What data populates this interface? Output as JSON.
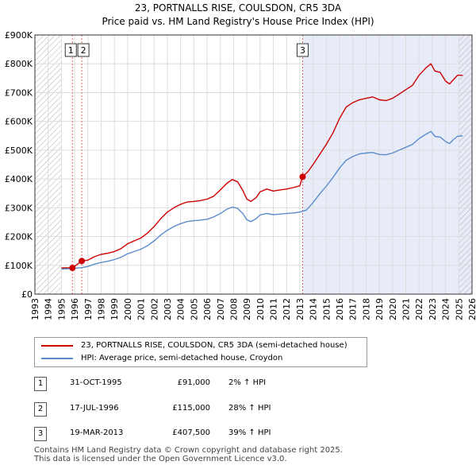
{
  "title_line1": "23, PORTNALLS RISE, COULSDON, CR5 3DA",
  "title_line2": "Price paid vs. HM Land Registry's House Price Index (HPI)",
  "colors": {
    "property": "#cc0000",
    "hpi": "#5b8ccc",
    "shade": "#e8ecf8",
    "hatch": "#aaaaaa",
    "marker_line": "#e06666"
  },
  "chart_data": {
    "type": "line",
    "x_range": [
      1993.0,
      2026.0
    ],
    "y_range": [
      0,
      900000
    ],
    "y_ticks": [
      {
        "v": 0,
        "label": "£0"
      },
      {
        "v": 100000,
        "label": "£100K"
      },
      {
        "v": 200000,
        "label": "£200K"
      },
      {
        "v": 300000,
        "label": "£300K"
      },
      {
        "v": 400000,
        "label": "£400K"
      },
      {
        "v": 500000,
        "label": "£500K"
      },
      {
        "v": 600000,
        "label": "£600K"
      },
      {
        "v": 700000,
        "label": "£700K"
      },
      {
        "v": 800000,
        "label": "£800K"
      },
      {
        "v": 900000,
        "label": "£900K"
      }
    ],
    "x_ticks": [
      "1993",
      "1994",
      "1995",
      "1996",
      "1997",
      "1998",
      "1999",
      "2000",
      "2001",
      "2002",
      "2003",
      "2004",
      "2005",
      "2006",
      "2007",
      "2008",
      "2009",
      "2010",
      "2011",
      "2012",
      "2013",
      "2014",
      "2015",
      "2016",
      "2017",
      "2018",
      "2019",
      "2020",
      "2021",
      "2022",
      "2023",
      "2024",
      "2025",
      "2026"
    ],
    "grid": true,
    "hatched_before": 1995.0,
    "hatched_after": 2025.0,
    "shaded_from": 2013.2,
    "series": [
      {
        "name": "23, PORTNALLS RISE, COULSDON, CR5 3DA (semi-detached house)",
        "key": "property",
        "points": [
          [
            1995.0,
            91000
          ],
          [
            1995.83,
            91000
          ],
          [
            1996.54,
            115000
          ],
          [
            1997.0,
            118000
          ],
          [
            1997.5,
            130000
          ],
          [
            1998.0,
            138000
          ],
          [
            1998.5,
            142000
          ],
          [
            1999.0,
            148000
          ],
          [
            1999.5,
            158000
          ],
          [
            2000.0,
            175000
          ],
          [
            2000.5,
            185000
          ],
          [
            2001.0,
            195000
          ],
          [
            2001.5,
            212000
          ],
          [
            2002.0,
            235000
          ],
          [
            2002.5,
            262000
          ],
          [
            2003.0,
            285000
          ],
          [
            2003.5,
            300000
          ],
          [
            2004.0,
            312000
          ],
          [
            2004.5,
            320000
          ],
          [
            2005.0,
            322000
          ],
          [
            2005.5,
            325000
          ],
          [
            2006.0,
            330000
          ],
          [
            2006.5,
            340000
          ],
          [
            2007.0,
            362000
          ],
          [
            2007.5,
            385000
          ],
          [
            2007.9,
            398000
          ],
          [
            2008.3,
            390000
          ],
          [
            2008.7,
            360000
          ],
          [
            2009.0,
            330000
          ],
          [
            2009.3,
            322000
          ],
          [
            2009.7,
            335000
          ],
          [
            2010.0,
            355000
          ],
          [
            2010.5,
            365000
          ],
          [
            2011.0,
            358000
          ],
          [
            2011.5,
            362000
          ],
          [
            2012.0,
            365000
          ],
          [
            2012.5,
            370000
          ],
          [
            2013.0,
            376000
          ],
          [
            2013.21,
            407500
          ],
          [
            2013.6,
            425000
          ],
          [
            2014.0,
            450000
          ],
          [
            2014.5,
            485000
          ],
          [
            2015.0,
            520000
          ],
          [
            2015.5,
            560000
          ],
          [
            2016.0,
            610000
          ],
          [
            2016.5,
            650000
          ],
          [
            2017.0,
            665000
          ],
          [
            2017.5,
            675000
          ],
          [
            2018.0,
            680000
          ],
          [
            2018.5,
            685000
          ],
          [
            2019.0,
            675000
          ],
          [
            2019.5,
            672000
          ],
          [
            2020.0,
            680000
          ],
          [
            2020.5,
            695000
          ],
          [
            2021.0,
            710000
          ],
          [
            2021.5,
            725000
          ],
          [
            2022.0,
            760000
          ],
          [
            2022.5,
            785000
          ],
          [
            2022.9,
            800000
          ],
          [
            2023.2,
            775000
          ],
          [
            2023.6,
            770000
          ],
          [
            2024.0,
            740000
          ],
          [
            2024.3,
            730000
          ],
          [
            2024.6,
            745000
          ],
          [
            2024.9,
            760000
          ],
          [
            2025.3,
            760000
          ]
        ]
      },
      {
        "name": "HPI: Average price, semi-detached house, Croydon",
        "key": "hpi",
        "points": [
          [
            1995.0,
            87000
          ],
          [
            1995.5,
            88000
          ],
          [
            1996.0,
            90000
          ],
          [
            1996.54,
            92000
          ],
          [
            1997.0,
            96000
          ],
          [
            1997.5,
            104000
          ],
          [
            1998.0,
            110000
          ],
          [
            1998.5,
            114000
          ],
          [
            1999.0,
            120000
          ],
          [
            1999.5,
            128000
          ],
          [
            2000.0,
            140000
          ],
          [
            2000.5,
            148000
          ],
          [
            2001.0,
            156000
          ],
          [
            2001.5,
            168000
          ],
          [
            2002.0,
            185000
          ],
          [
            2002.5,
            205000
          ],
          [
            2003.0,
            222000
          ],
          [
            2003.5,
            235000
          ],
          [
            2004.0,
            245000
          ],
          [
            2004.5,
            252000
          ],
          [
            2005.0,
            255000
          ],
          [
            2005.5,
            257000
          ],
          [
            2006.0,
            260000
          ],
          [
            2006.5,
            268000
          ],
          [
            2007.0,
            280000
          ],
          [
            2007.5,
            295000
          ],
          [
            2007.9,
            302000
          ],
          [
            2008.3,
            298000
          ],
          [
            2008.7,
            280000
          ],
          [
            2009.0,
            258000
          ],
          [
            2009.3,
            252000
          ],
          [
            2009.7,
            262000
          ],
          [
            2010.0,
            275000
          ],
          [
            2010.5,
            280000
          ],
          [
            2011.0,
            276000
          ],
          [
            2011.5,
            278000
          ],
          [
            2012.0,
            280000
          ],
          [
            2012.5,
            282000
          ],
          [
            2013.0,
            285000
          ],
          [
            2013.5,
            292000
          ],
          [
            2014.0,
            318000
          ],
          [
            2014.5,
            348000
          ],
          [
            2015.0,
            375000
          ],
          [
            2015.5,
            405000
          ],
          [
            2016.0,
            438000
          ],
          [
            2016.5,
            465000
          ],
          [
            2017.0,
            478000
          ],
          [
            2017.5,
            487000
          ],
          [
            2018.0,
            490000
          ],
          [
            2018.5,
            492000
          ],
          [
            2019.0,
            485000
          ],
          [
            2019.5,
            484000
          ],
          [
            2020.0,
            490000
          ],
          [
            2020.5,
            500000
          ],
          [
            2021.0,
            510000
          ],
          [
            2021.5,
            520000
          ],
          [
            2022.0,
            540000
          ],
          [
            2022.5,
            555000
          ],
          [
            2022.9,
            565000
          ],
          [
            2023.2,
            548000
          ],
          [
            2023.6,
            545000
          ],
          [
            2024.0,
            530000
          ],
          [
            2024.3,
            523000
          ],
          [
            2024.6,
            537000
          ],
          [
            2024.9,
            548000
          ],
          [
            2025.3,
            550000
          ]
        ]
      }
    ],
    "sales": [
      {
        "id": "1",
        "x": 1995.83,
        "price": 91000
      },
      {
        "id": "2",
        "x": 1996.54,
        "price": 115000
      },
      {
        "id": "3",
        "x": 2013.21,
        "price": 407500
      }
    ]
  },
  "legend": {
    "property_label": "23, PORTNALLS RISE, COULSDON, CR5 3DA (semi-detached house)",
    "hpi_label": "HPI: Average price, semi-detached house, Croydon"
  },
  "transactions": [
    {
      "num": "1",
      "date": "31-OCT-1995",
      "price": "£91,000",
      "hpi": "2% ↑ HPI"
    },
    {
      "num": "2",
      "date": "17-JUL-1996",
      "price": "£115,000",
      "hpi": "28% ↑ HPI"
    },
    {
      "num": "3",
      "date": "19-MAR-2013",
      "price": "£407,500",
      "hpi": "39% ↑ HPI"
    }
  ],
  "footer": "Contains HM Land Registry data © Crown copyright and database right 2025.\nThis data is licensed under the Open Government Licence v3.0."
}
